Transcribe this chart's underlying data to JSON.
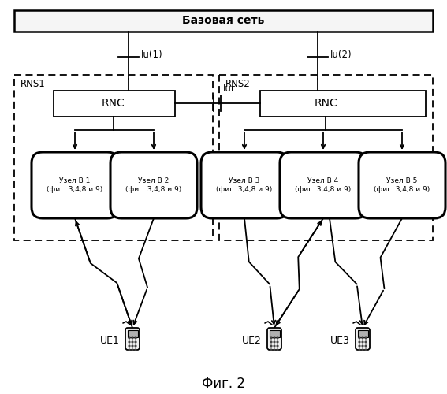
{
  "title": "Фиг. 2",
  "base_network_label": "Базовая сеть",
  "rns1_label": "RNS1",
  "rns2_label": "RNS2",
  "rnc_label": "RNC",
  "iur_label": "Iur",
  "iu1_label": "Iu(1)",
  "iu2_label": "Iu(2)",
  "node_labels": [
    "Узел В 1\n(фиг. 3,4,8 и 9)",
    "Узел В 2\n(фиг. 3,4,8 и 9)",
    "Узел В 3\n(фиг. 3,4,8 и 9)",
    "Узел В 4\n(фиг. 3,4,8 и 9)",
    "Узел В 5\n(фиг. 3,4,8 и 9)"
  ],
  "ue_labels": [
    "UE1",
    "UE2",
    "UE3"
  ],
  "bg_color": "#ffffff"
}
